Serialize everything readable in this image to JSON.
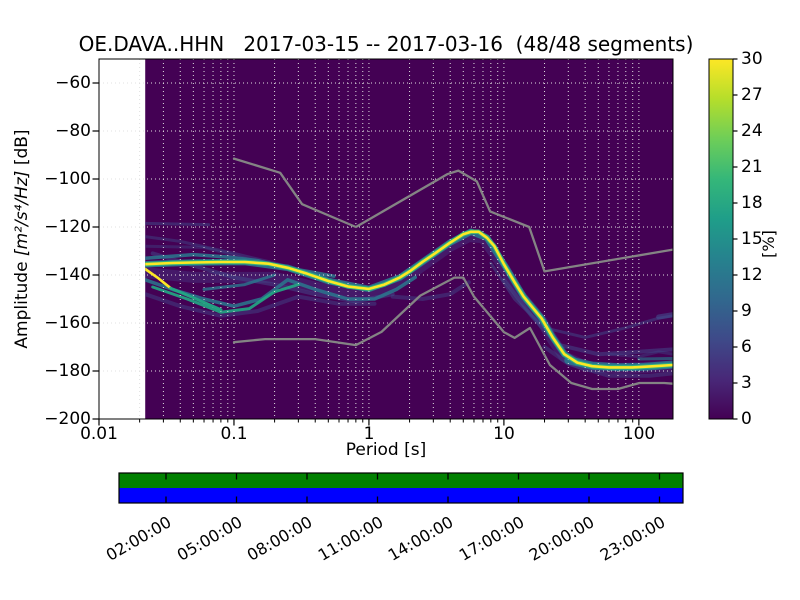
{
  "title": "OE.DAVA..HHN   2017-03-15 -- 2017-03-16  (48/48 segments)",
  "axes": {
    "x": {
      "label": "Period [s]",
      "scale": "log",
      "range": [
        0.01,
        179
      ],
      "tick_values": [
        0.01,
        0.1,
        1,
        10,
        100
      ],
      "tick_labels": [
        "0.01",
        "0.1",
        "1",
        "10",
        "100"
      ]
    },
    "y": {
      "label_prefix": "Amplitude ",
      "label_math": "[m²/s⁴/Hz]",
      "label_suffix": " [dB]",
      "range": [
        -200,
        -50
      ],
      "tick_values": [
        -60,
        -80,
        -100,
        -120,
        -140,
        -160,
        -180,
        -200
      ],
      "tick_labels": [
        "−60",
        "−80",
        "−100",
        "−120",
        "−140",
        "−160",
        "−180",
        "−200"
      ]
    }
  },
  "colorbar": {
    "label": "[%]",
    "range": [
      0,
      30
    ],
    "tick_values": [
      0,
      3,
      6,
      9,
      12,
      15,
      18,
      21,
      24,
      27,
      30
    ],
    "tick_labels": [
      "0",
      "3",
      "6",
      "9",
      "12",
      "15",
      "18",
      "21",
      "24",
      "27",
      "30"
    ],
    "colormap": "viridis",
    "gradient_stops": [
      "#440154",
      "#482878",
      "#3e4a89",
      "#31688e",
      "#26828e",
      "#1f9e89",
      "#35b779",
      "#6ece58",
      "#b5de2b",
      "#fde725"
    ]
  },
  "availability": {
    "hours_range": [
      0,
      24
    ],
    "tick_hours": [
      2,
      5,
      8,
      11,
      14,
      17,
      20,
      23
    ],
    "tick_labels": [
      "02:00:00",
      "05:00:00",
      "08:00:00",
      "11:00:00",
      "14:00:00",
      "17:00:00",
      "20:00:00",
      "23:00:00"
    ],
    "row_colors": [
      "#008000",
      "#0000ff"
    ]
  },
  "chart_data": {
    "type": "heatmap",
    "title": "OE.DAVA..HHN   2017-03-15 -- 2017-03-16  (48/48 segments)",
    "station": "OE.DAVA..HHN",
    "date_start": "2017-03-15",
    "date_end": "2017-03-16",
    "segments_used": "48/48",
    "xlabel": "Period [s]",
    "ylabel": "Amplitude [m^2/s^4/Hz] [dB]",
    "x_scale": "log",
    "x_range": [
      0.01,
      179
    ],
    "y_range": [
      -200,
      -50
    ],
    "colorbar_label": "[%]",
    "colorbar_range": [
      0,
      30
    ],
    "colormap": "viridis",
    "grid": "dotted, both axes, minor x ticks included",
    "background_probability_color": "#440154",
    "data_start_period": 0.022,
    "colors": {
      "background": "#440154",
      "no_data": "#ffffff",
      "mode": "#fde725",
      "core": "#31b57d",
      "noise_model": "#848484",
      "grid": "#e0e0e0"
    },
    "mode_line": {
      "name": "PSD maximum-probability ridge (period s, amplitude dB)",
      "points": [
        [
          0.022,
          -135.5
        ],
        [
          0.035,
          -135
        ],
        [
          0.05,
          -134.8
        ],
        [
          0.08,
          -134.6
        ],
        [
          0.12,
          -134.6
        ],
        [
          0.18,
          -135.3
        ],
        [
          0.25,
          -137
        ],
        [
          0.35,
          -139.5
        ],
        [
          0.5,
          -142.5
        ],
        [
          0.7,
          -144.8
        ],
        [
          1.0,
          -145.8
        ],
        [
          1.3,
          -144
        ],
        [
          1.7,
          -141
        ],
        [
          2.0,
          -138.5
        ],
        [
          2.5,
          -134.5
        ],
        [
          3.0,
          -131.5
        ],
        [
          4.0,
          -126.5
        ],
        [
          5.0,
          -123
        ],
        [
          5.7,
          -122
        ],
        [
          6.5,
          -122
        ],
        [
          7.5,
          -124.5
        ],
        [
          8.5,
          -128
        ],
        [
          10,
          -135.5
        ],
        [
          12,
          -143
        ],
        [
          14,
          -149
        ],
        [
          16,
          -153
        ],
        [
          19,
          -158
        ],
        [
          23,
          -166
        ],
        [
          28,
          -173
        ],
        [
          35,
          -176.5
        ],
        [
          45,
          -178
        ],
        [
          60,
          -178.5
        ],
        [
          90,
          -178.5
        ],
        [
          130,
          -178
        ],
        [
          179,
          -177.5
        ]
      ]
    },
    "noise_models": {
      "nhnm": {
        "name": "Peterson New High Noise Model",
        "points": [
          [
            0.1,
            -91.5
          ],
          [
            0.22,
            -97.4
          ],
          [
            0.32,
            -110.5
          ],
          [
            0.8,
            -120
          ],
          [
            3.8,
            -98
          ],
          [
            4.6,
            -96.5
          ],
          [
            6.3,
            -101
          ],
          [
            7.9,
            -113.5
          ],
          [
            15.4,
            -120
          ],
          [
            20,
            -138.5
          ],
          [
            179,
            -129.4
          ]
        ]
      },
      "nlnm": {
        "name": "Peterson New Low Noise Model",
        "points": [
          [
            0.1,
            -168
          ],
          [
            0.17,
            -166.7
          ],
          [
            0.4,
            -166.7
          ],
          [
            0.8,
            -169.2
          ],
          [
            1.24,
            -163.7
          ],
          [
            2.4,
            -148.6
          ],
          [
            4.3,
            -141.1
          ],
          [
            5,
            -141.1
          ],
          [
            6,
            -149
          ],
          [
            10,
            -163.8
          ],
          [
            12,
            -166.2
          ],
          [
            15.6,
            -162.1
          ],
          [
            21.9,
            -177.5
          ],
          [
            31.6,
            -185
          ],
          [
            45,
            -187.5
          ],
          [
            70,
            -187.5
          ],
          [
            101,
            -185
          ],
          [
            154,
            -185
          ],
          [
            179,
            -185.3
          ]
        ]
      }
    },
    "distribution_strands": [
      {
        "c": "#46327e",
        "w": 11,
        "o": 0.5,
        "layer": "base",
        "pts": [
          [
            0.022,
            -139
          ],
          [
            0.05,
            -141
          ],
          [
            0.1,
            -141
          ],
          [
            0.2,
            -141
          ],
          [
            0.4,
            -145
          ],
          [
            0.8,
            -148
          ],
          [
            1.3,
            -146
          ],
          [
            2,
            -140
          ],
          [
            3,
            -133
          ],
          [
            4,
            -128
          ],
          [
            5.5,
            -124
          ],
          [
            7,
            -124.5
          ],
          [
            8,
            -129
          ],
          [
            10,
            -137
          ],
          [
            13,
            -148
          ],
          [
            16,
            -154
          ],
          [
            19,
            -159
          ],
          [
            23,
            -167
          ],
          [
            28,
            -174
          ],
          [
            40,
            -178
          ],
          [
            70,
            -179
          ],
          [
            179,
            -178
          ]
        ]
      },
      {
        "c": "#3f4c8a",
        "w": 3,
        "o": 0.5,
        "layer": "base",
        "pts": [
          [
            0.022,
            -118.5
          ],
          [
            0.065,
            -119
          ]
        ]
      },
      {
        "c": "#3f4c8a",
        "w": 3,
        "o": 0.45,
        "layer": "base",
        "pts": [
          [
            0.022,
            -124
          ],
          [
            0.04,
            -126
          ],
          [
            0.1,
            -131
          ],
          [
            0.2,
            -135
          ],
          [
            0.4,
            -140
          ],
          [
            0.8,
            -145
          ]
        ]
      },
      {
        "c": "#3f4c8a",
        "w": 3,
        "o": 0.4,
        "layer": "base",
        "pts": [
          [
            0.022,
            -128
          ],
          [
            0.06,
            -128.5
          ],
          [
            0.12,
            -133
          ],
          [
            0.3,
            -139
          ],
          [
            0.6,
            -144
          ]
        ]
      },
      {
        "c": "#414b8c",
        "w": 4,
        "o": 0.5,
        "layer": "base",
        "pts": [
          [
            0.025,
            -131
          ],
          [
            0.05,
            -136
          ],
          [
            0.1,
            -141
          ],
          [
            0.2,
            -144
          ],
          [
            0.4,
            -148
          ],
          [
            0.8,
            -151
          ],
          [
            1.5,
            -148
          ]
        ]
      },
      {
        "c": "#414b8c",
        "w": 4,
        "o": 0.45,
        "layer": "base",
        "pts": [
          [
            0.022,
            -148
          ],
          [
            0.04,
            -153
          ],
          [
            0.08,
            -157
          ],
          [
            0.15,
            -155
          ],
          [
            0.3,
            -149
          ],
          [
            0.6,
            -152
          ],
          [
            1.1,
            -152
          ]
        ]
      },
      {
        "c": "#414b8c",
        "w": 4,
        "o": 0.45,
        "layer": "base",
        "pts": [
          [
            1.5,
            -149
          ],
          [
            2.5,
            -150
          ],
          [
            4,
            -148
          ],
          [
            5.5,
            -143
          ]
        ]
      },
      {
        "c": "#3f4c8a",
        "w": 3,
        "o": 0.5,
        "layer": "base",
        "pts": [
          [
            8,
            -135
          ],
          [
            12,
            -150
          ],
          [
            20,
            -162
          ],
          [
            40,
            -166
          ],
          [
            80,
            -162
          ],
          [
            140,
            -158
          ],
          [
            179,
            -157
          ]
        ]
      },
      {
        "c": "#414b8c",
        "w": 4,
        "o": 0.5,
        "layer": "base",
        "pts": [
          [
            10,
            -142
          ],
          [
            16,
            -157
          ],
          [
            25,
            -169
          ],
          [
            50,
            -173
          ],
          [
            100,
            -172
          ],
          [
            179,
            -171
          ]
        ]
      },
      {
        "c": "#414b8c",
        "w": 4,
        "o": 0.45,
        "layer": "base",
        "pts": [
          [
            20,
            -170
          ],
          [
            30,
            -177
          ],
          [
            60,
            -182
          ],
          [
            120,
            -182
          ],
          [
            179,
            -181
          ]
        ]
      },
      {
        "c": "#3f4c8a",
        "w": 3,
        "o": 0.4,
        "layer": "base",
        "pts": [
          [
            60,
            -173
          ],
          [
            100,
            -174
          ],
          [
            140,
            -172
          ],
          [
            179,
            -173
          ]
        ]
      },
      {
        "c": "#44508f",
        "w": 5,
        "o": 0.55,
        "layer": "base",
        "pts": [
          [
            140,
            -157.5
          ],
          [
            179,
            -156.5
          ]
        ]
      },
      {
        "c": "#2a788e",
        "w": 6.5,
        "o": 0.9,
        "layer": "base",
        "pts": [
          [
            0.022,
            -135.5
          ],
          [
            0.05,
            -134.8
          ],
          [
            0.12,
            -134.6
          ],
          [
            0.25,
            -137
          ],
          [
            0.5,
            -142.5
          ],
          [
            1,
            -145.8
          ],
          [
            1.7,
            -141
          ],
          [
            2.5,
            -134.5
          ],
          [
            4,
            -126.5
          ],
          [
            5.7,
            -122
          ],
          [
            7.5,
            -124.5
          ],
          [
            10,
            -135.5
          ],
          [
            14,
            -149
          ],
          [
            19,
            -158
          ],
          [
            23,
            -166
          ],
          [
            28,
            -173
          ],
          [
            35,
            -176.5
          ],
          [
            50,
            -178.3
          ],
          [
            90,
            -178.5
          ],
          [
            179,
            -177.5
          ]
        ]
      },
      {
        "c": "#2a788e",
        "w": 3.5,
        "o": 0.85,
        "layer": "base",
        "pts": [
          [
            0.022,
            -133
          ],
          [
            0.05,
            -131.5
          ],
          [
            0.09,
            -132.5
          ],
          [
            0.15,
            -134
          ],
          [
            0.22,
            -136.5
          ],
          [
            0.35,
            -138.5
          ],
          [
            0.55,
            -140.5
          ]
        ]
      },
      {
        "c": "#2a788e",
        "w": 3.5,
        "o": 0.85,
        "layer": "base",
        "pts": [
          [
            0.022,
            -142
          ],
          [
            0.035,
            -146
          ],
          [
            0.06,
            -150
          ],
          [
            0.1,
            -153
          ],
          [
            0.16,
            -150
          ],
          [
            0.25,
            -142
          ],
          [
            0.4,
            -146
          ],
          [
            0.7,
            -150
          ],
          [
            1.1,
            -150
          ],
          [
            1.6,
            -146
          ],
          [
            2.2,
            -141
          ]
        ]
      },
      {
        "c": "#2a788e",
        "w": 3,
        "o": 0.8,
        "layer": "base",
        "pts": [
          [
            0.06,
            -146
          ],
          [
            0.12,
            -144
          ],
          [
            0.2,
            -140
          ]
        ]
      },
      {
        "c": "#22a884",
        "w": 3,
        "o": 0.9,
        "layer": "base",
        "pts": [
          [
            0.025,
            -145
          ],
          [
            0.045,
            -150
          ],
          [
            0.08,
            -155.5
          ],
          [
            0.13,
            -154
          ],
          [
            0.2,
            -147
          ],
          [
            0.3,
            -144
          ]
        ]
      },
      {
        "c": "#2a788e",
        "w": 8,
        "o": 0.85,
        "layer": "base",
        "pts": [
          [
            30,
            -175.5
          ],
          [
            45,
            -177.8
          ],
          [
            70,
            -178.4
          ],
          [
            110,
            -178.3
          ],
          [
            179,
            -177.3
          ]
        ]
      },
      {
        "c": "#277f8e",
        "w": 3,
        "o": 0.6,
        "layer": "base",
        "pts": [
          [
            100,
            -175
          ],
          [
            179,
            -174.8
          ]
        ]
      },
      {
        "c": "#fde725",
        "w": 2.6,
        "o": 1,
        "layer": "top",
        "pts": [
          [
            0.022,
            -137.5
          ],
          [
            0.027,
            -141
          ],
          [
            0.034,
            -145.5
          ]
        ]
      },
      {
        "c": "#22a884",
        "w": 3,
        "o": 0.95,
        "layer": "top",
        "pts": [
          [
            0.034,
            -145.5
          ],
          [
            0.05,
            -149.5
          ],
          [
            0.08,
            -154.5
          ]
        ]
      }
    ]
  }
}
